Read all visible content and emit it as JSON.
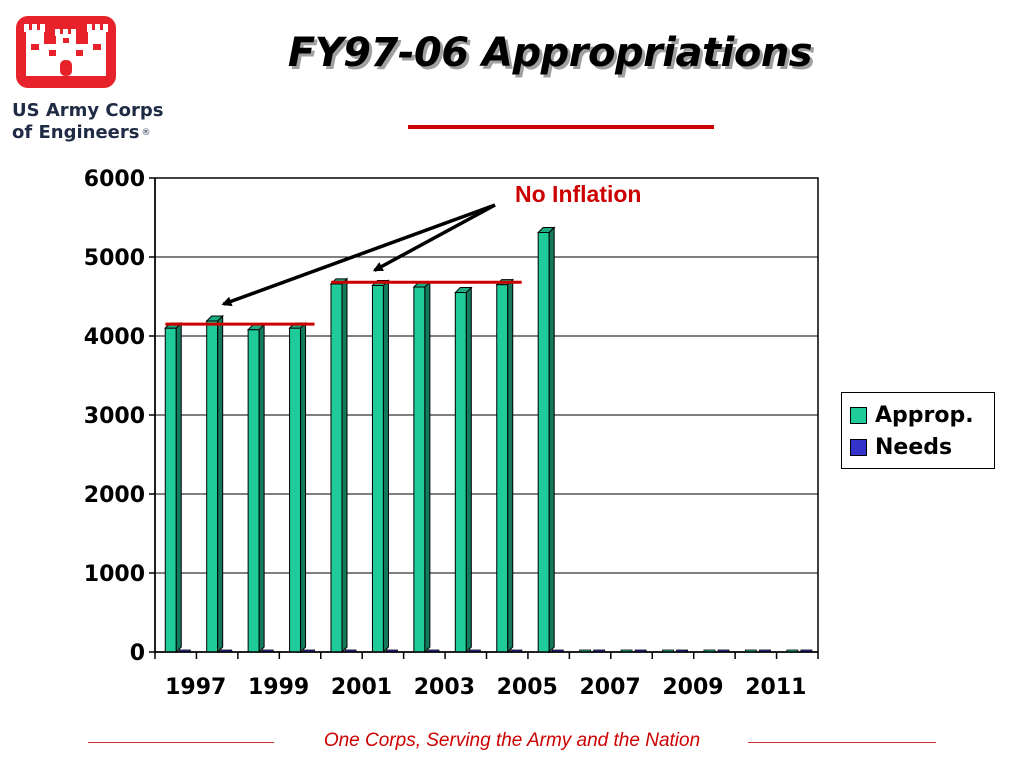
{
  "logo": {
    "org_line1": "US Army Corps",
    "org_line2": "of Engineers",
    "reg_mark": "®",
    "icon": "castle-icon"
  },
  "title": "FY97-06 Appropriations",
  "annotation": "No Inflation",
  "footer": {
    "tagline": "One Corps, Serving the Army and the Nation"
  },
  "colors": {
    "approp": "#1fcc99",
    "needs": "#3333cc",
    "accent": "#cc0000",
    "logo_red": "#e8222b"
  },
  "chart_data": {
    "type": "bar",
    "title": "",
    "xlabel": "",
    "ylabel": "",
    "ylim": [
      0,
      6000
    ],
    "yticks": [
      0,
      1000,
      2000,
      3000,
      4000,
      5000,
      6000
    ],
    "x": [
      1997,
      1998,
      1999,
      2000,
      2001,
      2002,
      2003,
      2004,
      2005,
      2006,
      2007,
      2008,
      2009,
      2010,
      2011,
      2012
    ],
    "x_tick_labels": [
      "1997",
      "1999",
      "2001",
      "2003",
      "2005",
      "2007",
      "2009",
      "2011"
    ],
    "series": [
      {
        "name": "Approp.",
        "values": [
          4100,
          4190,
          4080,
          4100,
          4660,
          4640,
          4620,
          4550,
          4650,
          5310,
          0,
          0,
          0,
          0,
          0,
          0
        ]
      },
      {
        "name": "Needs",
        "values": [
          0,
          0,
          0,
          0,
          0,
          0,
          0,
          0,
          0,
          0,
          0,
          0,
          0,
          0,
          0,
          0
        ]
      }
    ],
    "grid": true,
    "legend": "right",
    "reference_lines": [
      {
        "from": 1997,
        "to": 2000,
        "value": 4150
      },
      {
        "from": 2001,
        "to": 2005,
        "value": 4680
      }
    ]
  }
}
